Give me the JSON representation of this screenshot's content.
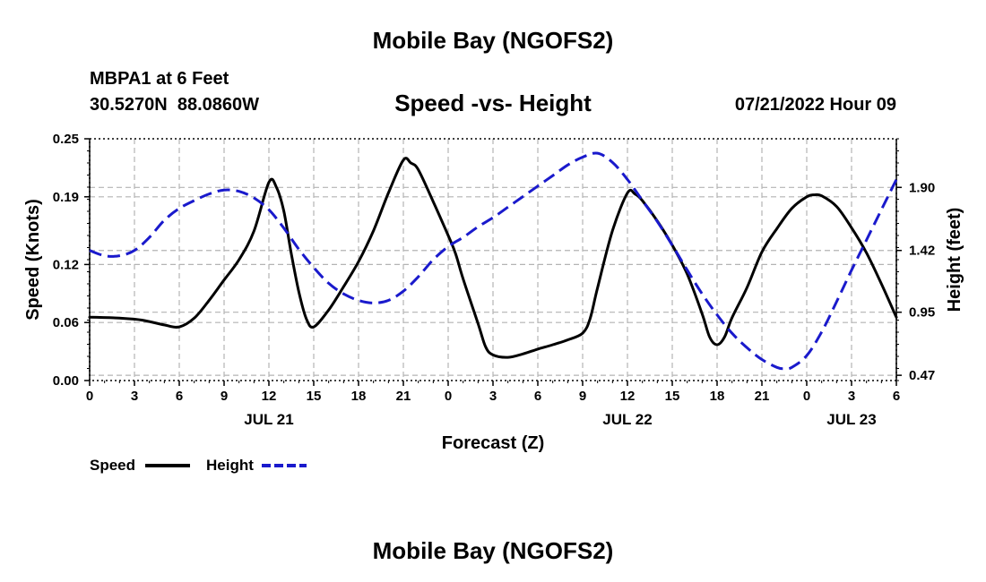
{
  "title": "Mobile Bay (NGOFS2)",
  "footer_title": "Mobile Bay (NGOFS2)",
  "station": {
    "name": "MBPA1 at 6 Feet",
    "coords": "30.5270N  88.0860W"
  },
  "subtitle": "Speed -vs- Height",
  "timestamp": "07/21/2022 Hour 09",
  "legend": {
    "speed_label": "Speed",
    "height_label": "Height"
  },
  "colors": {
    "speed": "#000000",
    "height": "#1a1acc",
    "grid": "#b4b4b4"
  },
  "chart_data": {
    "type": "line",
    "xlabel": "Forecast (Z)",
    "ylabel": "Speed (Knots)",
    "y2label": "Height (feet)",
    "x_range_hours": [
      0,
      54
    ],
    "x_ticks": [
      {
        "h": 0,
        "label": "0"
      },
      {
        "h": 3,
        "label": "3"
      },
      {
        "h": 6,
        "label": "6"
      },
      {
        "h": 9,
        "label": "9"
      },
      {
        "h": 12,
        "label": "12"
      },
      {
        "h": 15,
        "label": "15"
      },
      {
        "h": 18,
        "label": "18"
      },
      {
        "h": 21,
        "label": "21"
      },
      {
        "h": 24,
        "label": "0"
      },
      {
        "h": 27,
        "label": "3"
      },
      {
        "h": 30,
        "label": "6"
      },
      {
        "h": 33,
        "label": "9"
      },
      {
        "h": 36,
        "label": "12"
      },
      {
        "h": 39,
        "label": "15"
      },
      {
        "h": 42,
        "label": "18"
      },
      {
        "h": 45,
        "label": "21"
      },
      {
        "h": 48,
        "label": "0"
      },
      {
        "h": 51,
        "label": "3"
      },
      {
        "h": 54,
        "label": "6"
      }
    ],
    "date_labels": [
      {
        "h": 12,
        "label": "JUL 21"
      },
      {
        "h": 36,
        "label": "JUL 22"
      },
      {
        "h": 51,
        "label": "JUL 23"
      }
    ],
    "ylim": [
      0,
      0.25
    ],
    "y_ticks": [
      0.0,
      0.06,
      0.12,
      0.19,
      0.25
    ],
    "y_tick_labels": [
      "0.00",
      "0.06",
      "0.12",
      "0.19",
      "0.25"
    ],
    "y2lim": [
      0.43,
      2.27
    ],
    "y2_ticks": [
      0.47,
      0.95,
      1.42,
      1.9
    ],
    "y2_tick_labels": [
      "0.47",
      "0.95",
      "1.42",
      "1.90"
    ],
    "grid": true,
    "series": [
      {
        "name": "Speed",
        "axis": "left",
        "style": "solid",
        "points": [
          [
            0,
            0.0655
          ],
          [
            2,
            0.0645
          ],
          [
            3.5,
            0.0625
          ],
          [
            5,
            0.0575
          ],
          [
            6,
            0.0555
          ],
          [
            7,
            0.0645
          ],
          [
            8,
            0.083
          ],
          [
            9,
            0.104
          ],
          [
            10,
            0.125
          ],
          [
            11,
            0.1545
          ],
          [
            12,
            0.205
          ],
          [
            12.5,
            0.2
          ],
          [
            13,
            0.175
          ],
          [
            13.5,
            0.131
          ],
          [
            14,
            0.092
          ],
          [
            14.5,
            0.064
          ],
          [
            15,
            0.0555
          ],
          [
            16,
            0.073
          ],
          [
            17,
            0.097
          ],
          [
            18,
            0.123
          ],
          [
            19,
            0.155
          ],
          [
            20,
            0.194
          ],
          [
            21,
            0.228
          ],
          [
            21.5,
            0.225
          ],
          [
            22,
            0.218
          ],
          [
            23,
            0.185
          ],
          [
            24,
            0.15
          ],
          [
            24.5,
            0.131
          ],
          [
            25,
            0.105
          ],
          [
            26,
            0.059
          ],
          [
            26.5,
            0.035
          ],
          [
            27,
            0.0265
          ],
          [
            28,
            0.024
          ],
          [
            29,
            0.0275
          ],
          [
            30,
            0.0325
          ],
          [
            31,
            0.037
          ],
          [
            32,
            0.042
          ],
          [
            33,
            0.049
          ],
          [
            33.5,
            0.064
          ],
          [
            34,
            0.096
          ],
          [
            35,
            0.155
          ],
          [
            36,
            0.194
          ],
          [
            36.5,
            0.193
          ],
          [
            37,
            0.186
          ],
          [
            38,
            0.165
          ],
          [
            39,
            0.14
          ],
          [
            40,
            0.11
          ],
          [
            41,
            0.069
          ],
          [
            41.5,
            0.045
          ],
          [
            42,
            0.037
          ],
          [
            42.5,
            0.045
          ],
          [
            43,
            0.065
          ],
          [
            44,
            0.096
          ],
          [
            45,
            0.133
          ],
          [
            46,
            0.157
          ],
          [
            47,
            0.178
          ],
          [
            48,
            0.19
          ],
          [
            48.5,
            0.192
          ],
          [
            49,
            0.191
          ],
          [
            50,
            0.18
          ],
          [
            51,
            0.158
          ],
          [
            52,
            0.132
          ],
          [
            53,
            0.1
          ],
          [
            54,
            0.0655
          ]
        ]
      },
      {
        "name": "Height",
        "axis": "right",
        "style": "dashed",
        "points": [
          [
            0,
            1.42
          ],
          [
            1,
            1.38
          ],
          [
            2,
            1.38
          ],
          [
            3,
            1.42
          ],
          [
            4,
            1.52
          ],
          [
            5,
            1.65
          ],
          [
            6,
            1.74
          ],
          [
            7,
            1.8
          ],
          [
            8,
            1.85
          ],
          [
            9,
            1.88
          ],
          [
            10,
            1.87
          ],
          [
            11,
            1.82
          ],
          [
            12,
            1.73
          ],
          [
            13,
            1.59
          ],
          [
            14,
            1.43
          ],
          [
            15,
            1.29
          ],
          [
            16,
            1.17
          ],
          [
            17,
            1.09
          ],
          [
            18,
            1.04
          ],
          [
            19,
            1.02
          ],
          [
            20,
            1.04
          ],
          [
            21,
            1.11
          ],
          [
            22,
            1.22
          ],
          [
            23,
            1.35
          ],
          [
            24,
            1.45
          ],
          [
            25,
            1.52
          ],
          [
            26,
            1.6
          ],
          [
            27,
            1.67
          ],
          [
            28,
            1.75
          ],
          [
            29,
            1.83
          ],
          [
            30,
            1.91
          ],
          [
            31,
            1.99
          ],
          [
            32,
            2.07
          ],
          [
            33,
            2.13
          ],
          [
            34,
            2.16
          ],
          [
            35,
            2.09
          ],
          [
            36,
            1.96
          ],
          [
            37,
            1.8
          ],
          [
            38,
            1.64
          ],
          [
            39,
            1.46
          ],
          [
            40,
            1.27
          ],
          [
            41,
            1.09
          ],
          [
            42,
            0.93
          ],
          [
            43,
            0.79
          ],
          [
            44,
            0.68
          ],
          [
            45,
            0.59
          ],
          [
            46,
            0.53
          ],
          [
            46.5,
            0.52
          ],
          [
            47,
            0.53
          ],
          [
            48,
            0.62
          ],
          [
            49,
            0.8
          ],
          [
            50,
            1.03
          ],
          [
            51,
            1.27
          ],
          [
            52,
            1.5
          ],
          [
            53,
            1.73
          ],
          [
            54,
            1.96
          ]
        ]
      }
    ]
  }
}
